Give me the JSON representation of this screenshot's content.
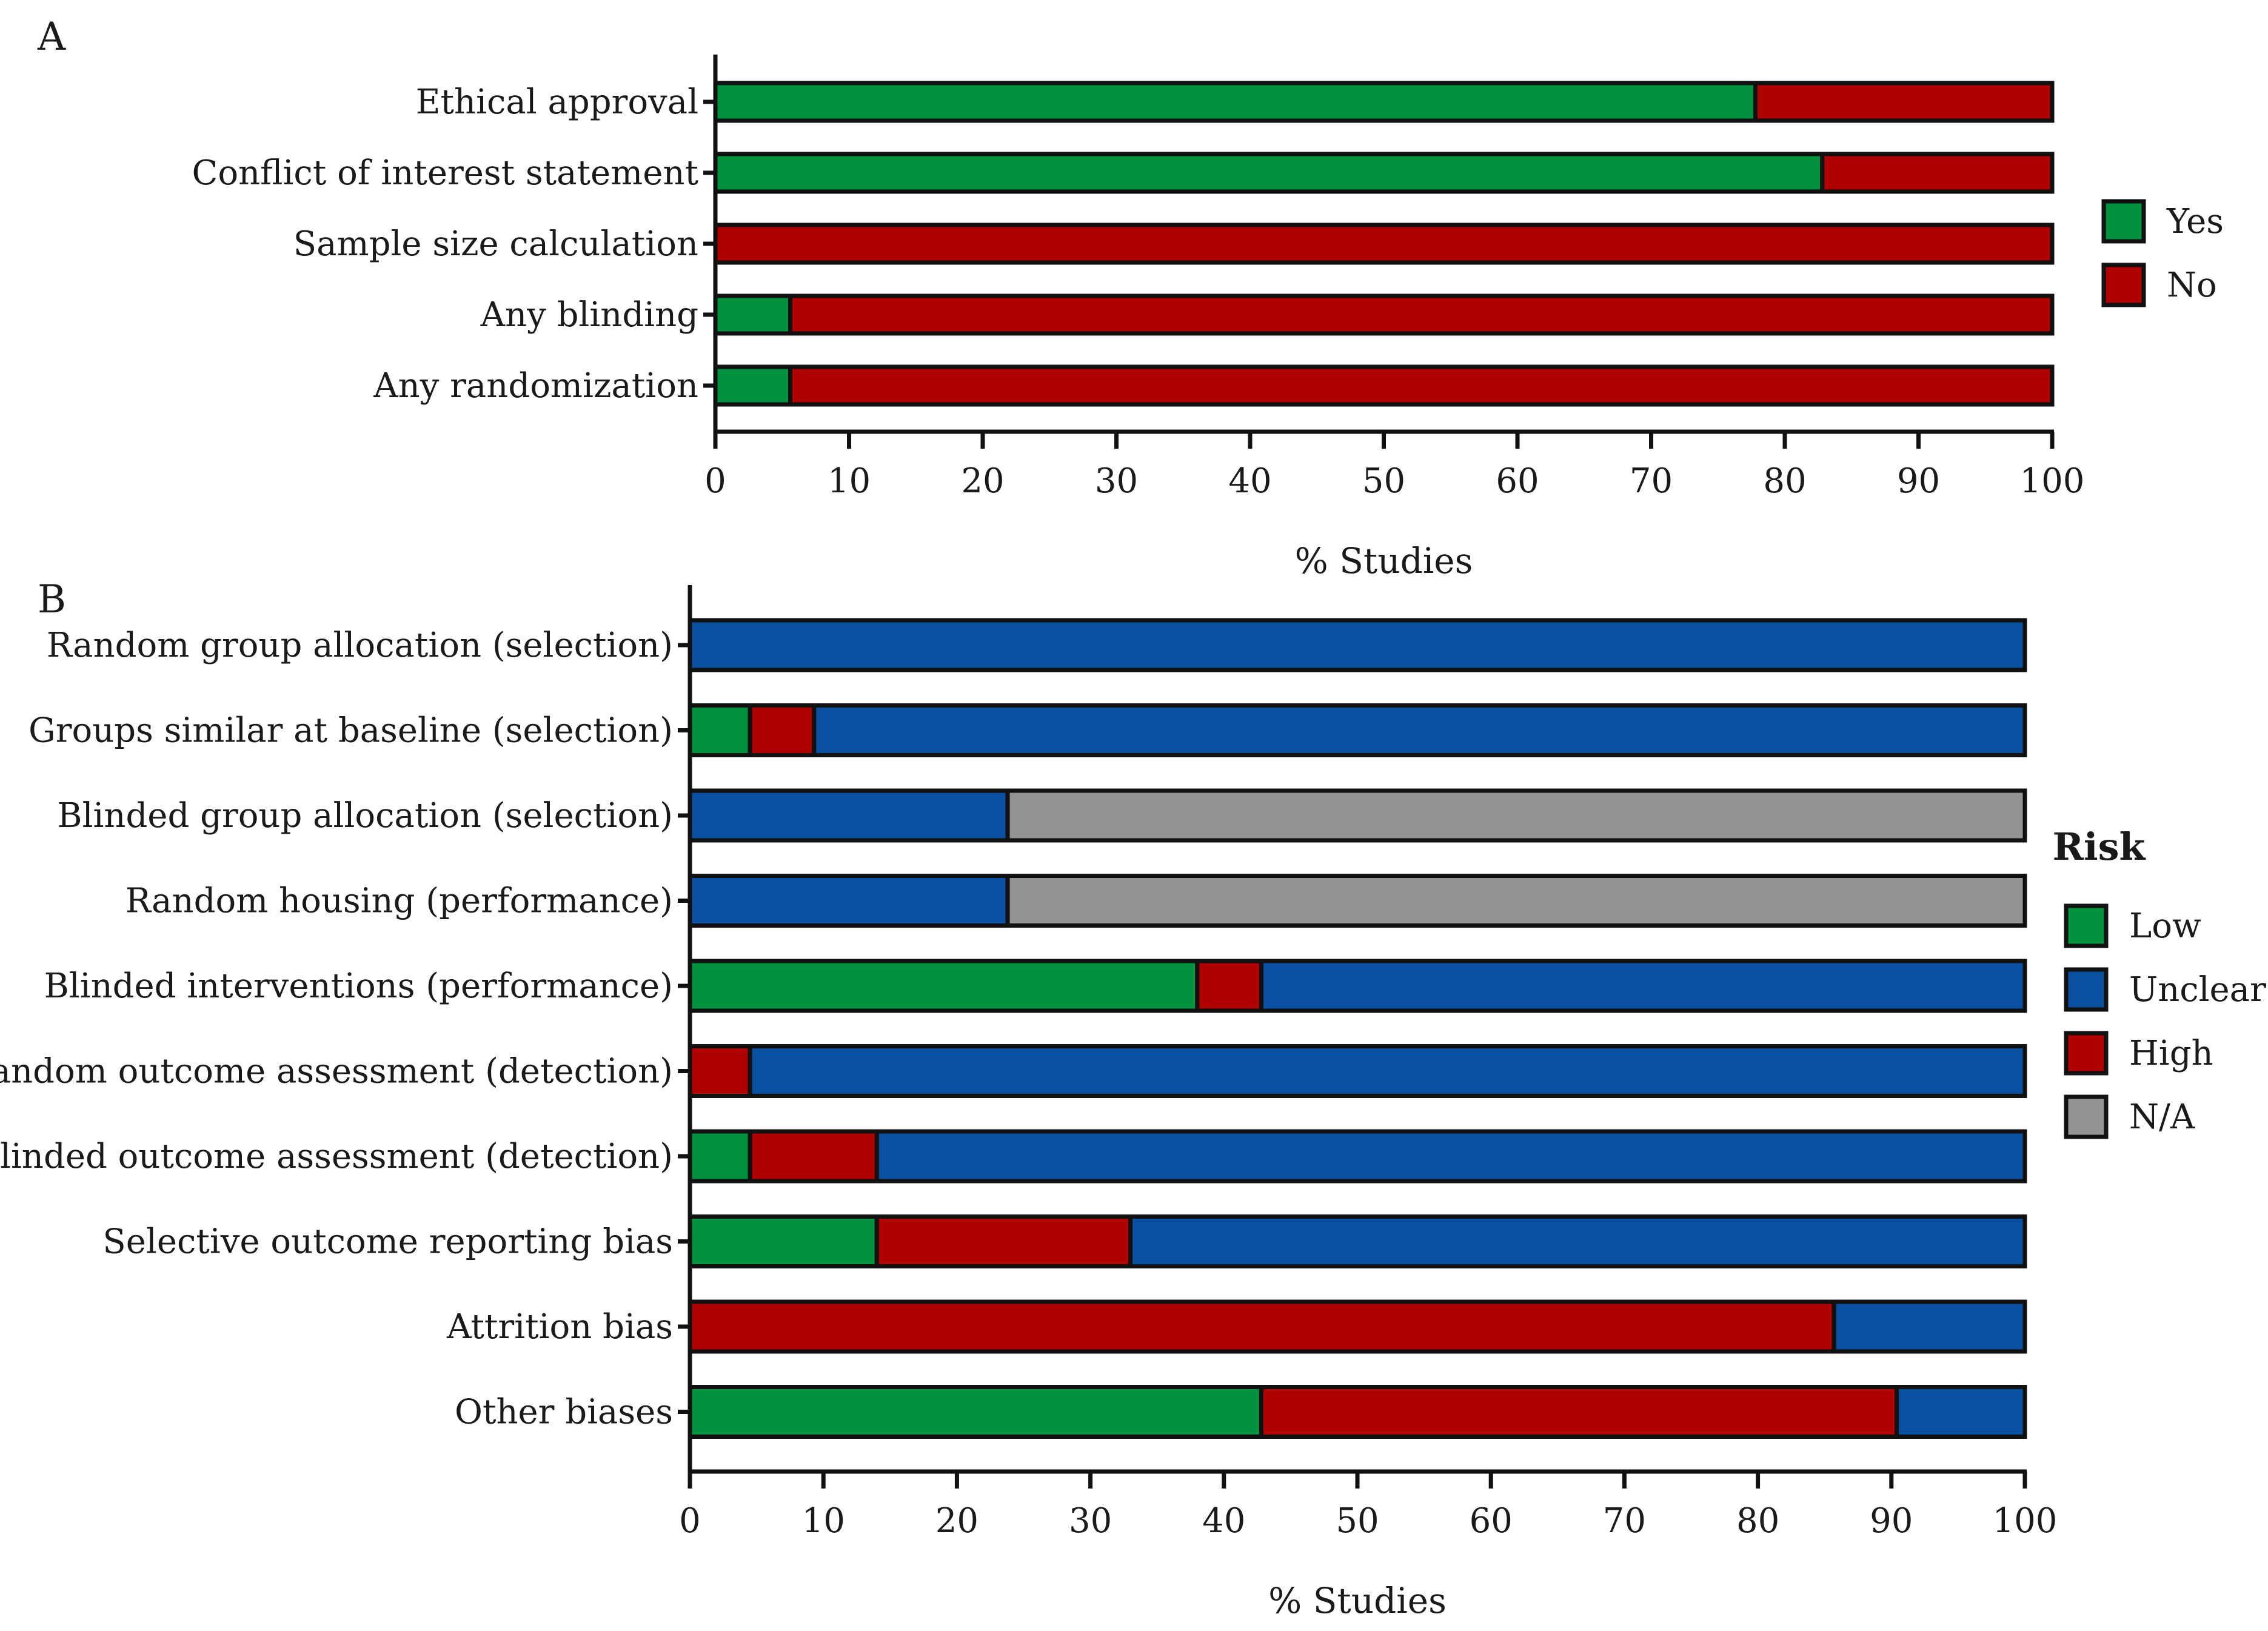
{
  "colors": {
    "Yes": "#00923f",
    "No": "#b00000",
    "Low": "#00923f",
    "Unclear": "#0a50a0",
    "High": "#b00000",
    "N/A": "#939393",
    "outline": "#111111"
  },
  "chart_data": [
    {
      "type": "bar",
      "orientation": "horizontal",
      "stacked": true,
      "panel_label": "A",
      "categories": [
        "Ethical approval",
        "Conflict of interest statement",
        "Sample size calculation",
        "Any blinding",
        "Any randomization"
      ],
      "series": [
        {
          "name": "Yes",
          "values": [
            77.8,
            82.8,
            0,
            5.6,
            5.6
          ]
        },
        {
          "name": "No",
          "values": [
            22.2,
            17.2,
            100,
            94.4,
            94.4
          ]
        }
      ],
      "xlabel": "% Studies",
      "xlim": [
        0,
        100
      ],
      "xticks": [
        0,
        10,
        20,
        30,
        40,
        50,
        60,
        70,
        80,
        90,
        100
      ],
      "legend": {
        "title": "",
        "entries": [
          "Yes",
          "No"
        ],
        "position": "right"
      }
    },
    {
      "type": "bar",
      "orientation": "horizontal",
      "stacked": true,
      "panel_label": "B",
      "categories": [
        "Random group allocation (selection)",
        "Groups similar at baseline (selection)",
        "Blinded group allocation (selection)",
        "Random housing (performance)",
        "Blinded interventions (performance)",
        "Random outcome assessment (detection)",
        "Blinded outcome assessment (detection)",
        "Selective outcome reporting bias",
        "Attrition bias",
        "Other biases"
      ],
      "series": [
        {
          "name": "Low",
          "values": [
            0,
            4.5,
            0,
            0,
            38,
            0,
            4.5,
            14,
            0,
            42.8
          ]
        },
        {
          "name": "High",
          "values": [
            0,
            4.8,
            0,
            0,
            4.8,
            4.5,
            9.5,
            19,
            85.7,
            47.6
          ]
        },
        {
          "name": "Unclear",
          "values": [
            100,
            90.7,
            23.8,
            23.8,
            57.2,
            95.5,
            86,
            67,
            14.3,
            9.6
          ]
        },
        {
          "name": "N/A",
          "values": [
            0,
            0,
            76.2,
            76.2,
            0,
            0,
            0,
            0,
            0,
            0
          ]
        }
      ],
      "xlabel": "% Studies",
      "xlim": [
        0,
        100
      ],
      "xticks": [
        0,
        10,
        20,
        30,
        40,
        50,
        60,
        70,
        80,
        90,
        100
      ],
      "legend": {
        "title": "Risk",
        "entries": [
          "Low",
          "Unclear",
          "High",
          "N/A"
        ],
        "position": "right"
      }
    }
  ]
}
